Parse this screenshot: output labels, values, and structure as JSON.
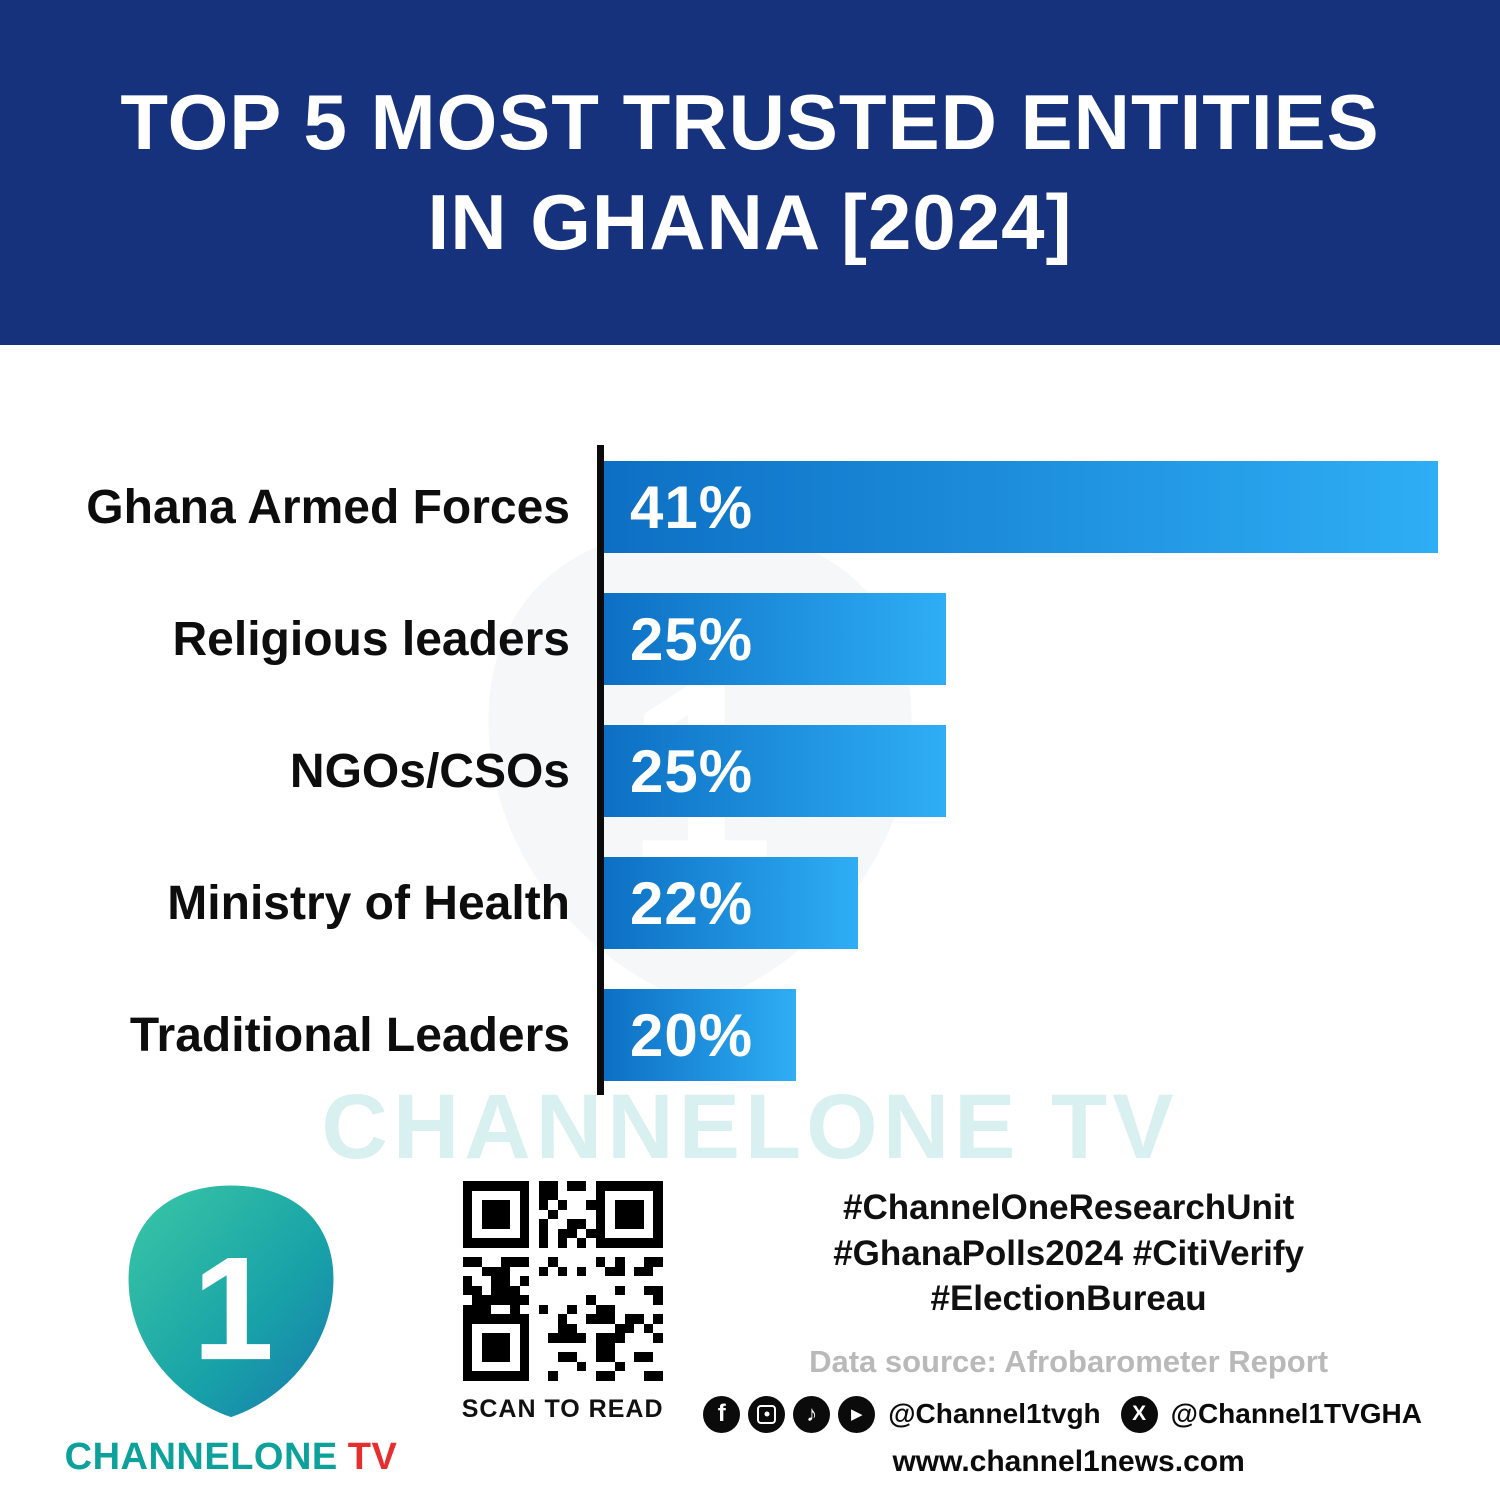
{
  "banner": {
    "title_line1": "TOP 5 MOST TRUSTED ENTITIES",
    "title_line2": "IN GHANA [2024]"
  },
  "chart_data": {
    "type": "bar",
    "orientation": "horizontal",
    "title": "TOP 5 MOST TRUSTED ENTITIES IN GHANA [2024]",
    "categories": [
      "Ghana Armed Forces",
      "Religious leaders",
      "NGOs/CSOs",
      "Ministry of Health",
      "Traditional Leaders"
    ],
    "values": [
      41,
      25,
      25,
      22,
      20
    ],
    "value_labels": [
      "41%",
      "25%",
      "25%",
      "22%",
      "20%"
    ],
    "xlabel": "",
    "ylabel": "",
    "xlim": [
      0,
      41
    ],
    "grid": false,
    "legend": false,
    "source": "Afrobarometer Report",
    "display_width_pct": [
      100,
      41,
      41,
      30.5,
      23
    ],
    "bar_color_start": "#0d6fc3",
    "bar_color_end": "#2eaef5",
    "axis_color": "#0b0b0b"
  },
  "watermark": {
    "text": "CHANNELONE TV"
  },
  "footer": {
    "logo": {
      "one": "1",
      "brand_channel": "CHANNELONE",
      "brand_tv": "TV"
    },
    "qr_caption": "SCAN TO READ",
    "hashtags": [
      "#ChannelOneResearchUnit",
      "#GhanaPolls2024 #CitiVerify",
      "#ElectionBureau"
    ],
    "data_source": "Data source: Afrobarometer Report",
    "icons": [
      "facebook",
      "instagram",
      "tiktok",
      "youtube",
      "x"
    ],
    "social_handle_1": "@Channel1tvgh",
    "social_handle_2": "@Channel1TVGHA",
    "website": "www.channel1news.com"
  },
  "colors": {
    "banner_blue": "#16327D",
    "bar_gradient_start": "#0d6fc3",
    "bar_gradient_end": "#2eaef5",
    "brand_teal": "#0CA19B",
    "brand_red": "#E62E2E",
    "source_gray": "#B9B9B9"
  }
}
